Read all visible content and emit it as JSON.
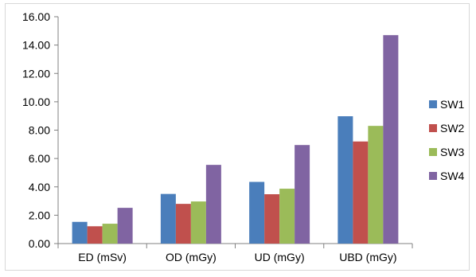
{
  "chart_data": {
    "type": "bar",
    "categories": [
      "ED (mSv)",
      "OD (mGy)",
      "UD (mGy)",
      "UBD (mGy)"
    ],
    "series": [
      {
        "name": "SW1",
        "color": "#4a7ebb",
        "values": [
          1.53,
          3.5,
          4.35,
          8.98
        ]
      },
      {
        "name": "SW2",
        "color": "#c0504d",
        "values": [
          1.22,
          2.8,
          3.48,
          7.2
        ]
      },
      {
        "name": "SW3",
        "color": "#9bbb59",
        "values": [
          1.4,
          2.97,
          3.87,
          8.3
        ]
      },
      {
        "name": "SW4",
        "color": "#8064a2",
        "values": [
          2.52,
          5.55,
          6.95,
          14.7
        ]
      }
    ],
    "ylim": [
      0,
      16
    ],
    "ytick_step": 2,
    "ytick_labels": [
      "0.00",
      "2.00",
      "4.00",
      "6.00",
      "8.00",
      "10.00",
      "12.00",
      "14.00",
      "16.00"
    ],
    "grid": false,
    "legend": "right",
    "title": "",
    "xlabel": "",
    "ylabel": ""
  }
}
